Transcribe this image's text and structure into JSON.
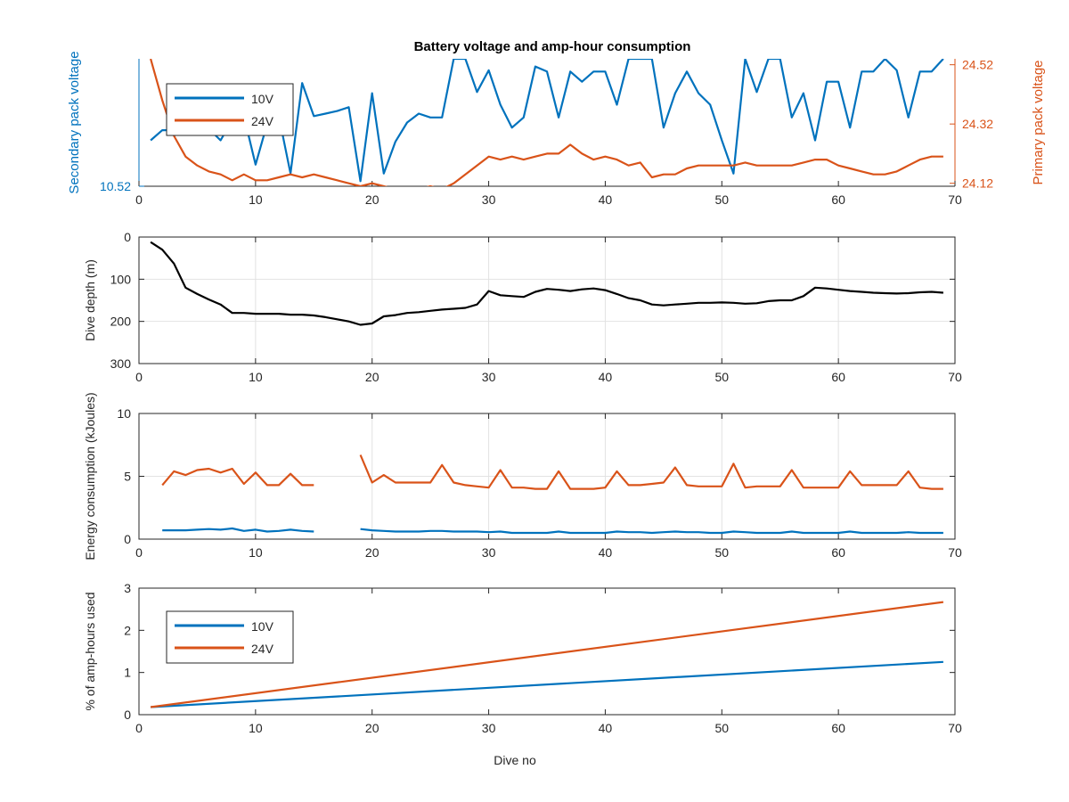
{
  "figure": {
    "title": "Battery voltage and amp-hour consumption",
    "colors": {
      "blue": "#0072BD",
      "orange": "#D95319",
      "black": "#000000",
      "axis": "#262626",
      "grid": "#e2e2e2"
    }
  },
  "chart_data": [
    {
      "type": "line",
      "title": "Battery voltage and amp-hour consumption",
      "xlabel": "",
      "ylabel": "Secondary pack voltage",
      "ylabel_right": "Primary pack voltage",
      "xlim": [
        0,
        70
      ],
      "xticks": [
        0,
        10,
        20,
        30,
        40,
        50,
        60,
        70
      ],
      "ylim": [
        0,
        10
      ],
      "yticks_left": [
        0
      ],
      "yticklabels_left": [
        "10.52"
      ],
      "ylim_right": [
        24.11,
        24.54
      ],
      "yticks_right": [
        24.12,
        24.32,
        24.52
      ],
      "yticklabels_right": [
        "24.12",
        "24.32",
        "24.52"
      ],
      "grid": false,
      "legend": {
        "location": "top-left",
        "entries": [
          "10V",
          "24V"
        ]
      },
      "series": [
        {
          "name": "10V",
          "axis": "left",
          "color": "#0072BD",
          "x": [
            1,
            2,
            3,
            4,
            5,
            6,
            7,
            8,
            9,
            10,
            11,
            12,
            13,
            14,
            15,
            16,
            17,
            18,
            19,
            20,
            21,
            22,
            23,
            24,
            25,
            26,
            27,
            28,
            29,
            30,
            31,
            32,
            33,
            34,
            35,
            36,
            37,
            38,
            39,
            40,
            41,
            42,
            43,
            44,
            45,
            46,
            47,
            48,
            49,
            50,
            51,
            52,
            53,
            54,
            55,
            56,
            57,
            58,
            59,
            60,
            61,
            62,
            63,
            64,
            65,
            66,
            67,
            68,
            69
          ],
          "y": [
            3.6,
            4.4,
            4.4,
            4.4,
            4.4,
            4.5,
            3.6,
            5.2,
            5.5,
            1.7,
            4.9,
            5.5,
            1.0,
            8.1,
            5.5,
            5.7,
            5.9,
            6.2,
            0.4,
            7.3,
            1.0,
            3.5,
            5.0,
            5.7,
            5.4,
            5.4,
            10,
            10,
            7.4,
            9.1,
            6.4,
            4.6,
            5.4,
            9.4,
            9.0,
            5.4,
            9.0,
            8.2,
            9.0,
            9.0,
            6.4,
            10,
            10,
            10,
            4.6,
            7.3,
            9.0,
            7.3,
            6.4,
            3.6,
            1.0,
            10,
            7.4,
            10,
            10,
            5.4,
            7.3,
            3.6,
            8.2,
            8.2,
            4.6,
            9.0,
            9.0,
            10,
            9.1,
            5.4,
            9.0,
            9.0,
            10
          ]
        },
        {
          "name": "24V",
          "axis": "right",
          "color": "#D95319",
          "x": [
            1,
            2,
            3,
            4,
            5,
            6,
            7,
            8,
            9,
            10,
            11,
            12,
            13,
            14,
            15,
            16,
            17,
            18,
            19,
            20,
            21,
            22,
            23,
            24,
            25,
            26,
            27,
            28,
            29,
            30,
            31,
            32,
            33,
            34,
            35,
            36,
            37,
            38,
            39,
            40,
            41,
            42,
            43,
            44,
            45,
            46,
            47,
            48,
            49,
            50,
            51,
            52,
            53,
            54,
            55,
            56,
            57,
            58,
            59,
            60,
            61,
            62,
            63,
            64,
            65,
            66,
            67,
            68,
            69
          ],
          "y": [
            24.54,
            24.4,
            24.28,
            24.21,
            24.18,
            24.16,
            24.15,
            24.13,
            24.15,
            24.13,
            24.13,
            24.14,
            24.15,
            24.14,
            24.15,
            24.14,
            24.13,
            24.12,
            24.11,
            24.12,
            24.11,
            24.1,
            24.1,
            24.1,
            24.11,
            24.1,
            24.12,
            24.15,
            24.18,
            24.21,
            24.2,
            24.21,
            24.2,
            24.21,
            24.22,
            24.22,
            24.25,
            24.22,
            24.2,
            24.21,
            24.2,
            24.18,
            24.19,
            24.14,
            24.15,
            24.15,
            24.17,
            24.18,
            24.18,
            24.18,
            24.18,
            24.19,
            24.18,
            24.18,
            24.18,
            24.18,
            24.19,
            24.2,
            24.2,
            24.18,
            24.17,
            24.16,
            24.15,
            24.15,
            24.16,
            24.18,
            24.2,
            24.21,
            24.21
          ]
        }
      ]
    },
    {
      "type": "line",
      "title": "",
      "xlabel": "",
      "ylabel": "Dive depth (m)",
      "xlim": [
        0,
        70
      ],
      "xticks": [
        0,
        10,
        20,
        30,
        40,
        50,
        60,
        70
      ],
      "ylim": [
        0,
        300
      ],
      "yticks": [
        0,
        100,
        200,
        300
      ],
      "yticklabels": [
        "0",
        "100",
        "200",
        "300"
      ],
      "y_reversed": true,
      "grid": true,
      "series": [
        {
          "name": "",
          "color": "#000000",
          "x": [
            1,
            2,
            3,
            4,
            5,
            6,
            7,
            8,
            9,
            10,
            11,
            12,
            13,
            14,
            15,
            16,
            17,
            18,
            19,
            20,
            21,
            22,
            23,
            24,
            25,
            26,
            27,
            28,
            29,
            30,
            31,
            32,
            33,
            34,
            35,
            36,
            37,
            38,
            39,
            40,
            41,
            42,
            43,
            44,
            45,
            46,
            47,
            48,
            49,
            50,
            51,
            52,
            53,
            54,
            55,
            56,
            57,
            58,
            59,
            60,
            61,
            62,
            63,
            64,
            65,
            66,
            67,
            68,
            69
          ],
          "y": [
            12,
            30,
            63,
            120,
            135,
            148,
            160,
            180,
            180,
            182,
            182,
            182,
            184,
            184,
            186,
            190,
            195,
            200,
            208,
            205,
            188,
            185,
            180,
            178,
            175,
            172,
            170,
            168,
            160,
            128,
            138,
            140,
            142,
            130,
            123,
            125,
            128,
            124,
            122,
            126,
            135,
            145,
            150,
            160,
            162,
            160,
            158,
            156,
            156,
            155,
            156,
            158,
            157,
            152,
            150,
            150,
            140,
            120,
            122,
            125,
            128,
            130,
            132,
            133,
            134,
            133,
            131,
            130,
            132
          ]
        }
      ]
    },
    {
      "type": "line",
      "title": "",
      "xlabel": "",
      "ylabel": "Energy consumption (kJoules)",
      "xlim": [
        0,
        70
      ],
      "xticks": [
        0,
        10,
        20,
        30,
        40,
        50,
        60,
        70
      ],
      "ylim": [
        0,
        10
      ],
      "yticks": [
        0,
        5,
        10
      ],
      "yticklabels": [
        "0",
        "5",
        "10"
      ],
      "grid": true,
      "series": [
        {
          "name": "",
          "color": "#D95319",
          "x": [
            2,
            3,
            4,
            5,
            6,
            7,
            8,
            9,
            10,
            11,
            12,
            13,
            14,
            15,
            null,
            19,
            20,
            21,
            22,
            23,
            24,
            25,
            26,
            27,
            28,
            29,
            30,
            31,
            32,
            33,
            34,
            35,
            36,
            37,
            38,
            39,
            40,
            41,
            42,
            43,
            44,
            45,
            46,
            47,
            48,
            49,
            50,
            51,
            52,
            53,
            54,
            55,
            56,
            57,
            58,
            59,
            60,
            61,
            62,
            63,
            64,
            65,
            66,
            67,
            68,
            69
          ],
          "y": [
            4.3,
            5.4,
            5.1,
            5.5,
            5.6,
            5.3,
            5.6,
            4.4,
            5.3,
            4.3,
            4.3,
            5.2,
            4.3,
            4.3,
            null,
            6.7,
            4.5,
            5.1,
            4.5,
            4.5,
            4.5,
            4.5,
            5.9,
            4.5,
            4.3,
            4.2,
            4.1,
            5.5,
            4.1,
            4.1,
            4.0,
            4.0,
            5.4,
            4.0,
            4.0,
            4.0,
            4.1,
            5.4,
            4.3,
            4.3,
            4.4,
            4.5,
            5.7,
            4.3,
            4.2,
            4.2,
            4.2,
            6.0,
            4.1,
            4.2,
            4.2,
            4.2,
            5.5,
            4.1,
            4.1,
            4.1,
            4.1,
            5.4,
            4.3,
            4.3,
            4.3,
            4.3,
            5.4,
            4.1,
            4.0,
            4.0
          ]
        },
        {
          "name": "",
          "color": "#0072BD",
          "x": [
            2,
            3,
            4,
            5,
            6,
            7,
            8,
            9,
            10,
            11,
            12,
            13,
            14,
            15,
            null,
            19,
            20,
            21,
            22,
            23,
            24,
            25,
            26,
            27,
            28,
            29,
            30,
            31,
            32,
            33,
            34,
            35,
            36,
            37,
            38,
            39,
            40,
            41,
            42,
            43,
            44,
            45,
            46,
            47,
            48,
            49,
            50,
            51,
            52,
            53,
            54,
            55,
            56,
            57,
            58,
            59,
            60,
            61,
            62,
            63,
            64,
            65,
            66,
            67,
            68,
            69
          ],
          "y": [
            0.7,
            0.7,
            0.7,
            0.75,
            0.8,
            0.75,
            0.85,
            0.65,
            0.75,
            0.6,
            0.65,
            0.75,
            0.65,
            0.6,
            null,
            0.8,
            0.7,
            0.65,
            0.6,
            0.6,
            0.6,
            0.65,
            0.65,
            0.6,
            0.6,
            0.6,
            0.55,
            0.6,
            0.5,
            0.5,
            0.5,
            0.5,
            0.6,
            0.5,
            0.5,
            0.5,
            0.5,
            0.6,
            0.55,
            0.55,
            0.5,
            0.55,
            0.6,
            0.55,
            0.55,
            0.5,
            0.5,
            0.6,
            0.55,
            0.5,
            0.5,
            0.5,
            0.6,
            0.5,
            0.5,
            0.5,
            0.5,
            0.6,
            0.5,
            0.5,
            0.5,
            0.5,
            0.55,
            0.5,
            0.5,
            0.5
          ]
        }
      ]
    },
    {
      "type": "line",
      "title": "",
      "xlabel": "Dive no",
      "ylabel": "% of amp-hours used",
      "xlim": [
        0,
        70
      ],
      "xticks": [
        0,
        10,
        20,
        30,
        40,
        50,
        60,
        70
      ],
      "ylim": [
        0,
        3
      ],
      "yticks": [
        0,
        1,
        2,
        3
      ],
      "yticklabels": [
        "0",
        "1",
        "2",
        "3"
      ],
      "grid": false,
      "legend": {
        "location": "top-left",
        "entries": [
          "10V",
          "24V"
        ]
      },
      "series": [
        {
          "name": "10V",
          "color": "#0072BD",
          "x": [
            1,
            69
          ],
          "y": [
            0.18,
            1.25
          ]
        },
        {
          "name": "24V",
          "color": "#D95319",
          "x": [
            1,
            69
          ],
          "y": [
            0.18,
            2.67
          ]
        }
      ]
    }
  ]
}
